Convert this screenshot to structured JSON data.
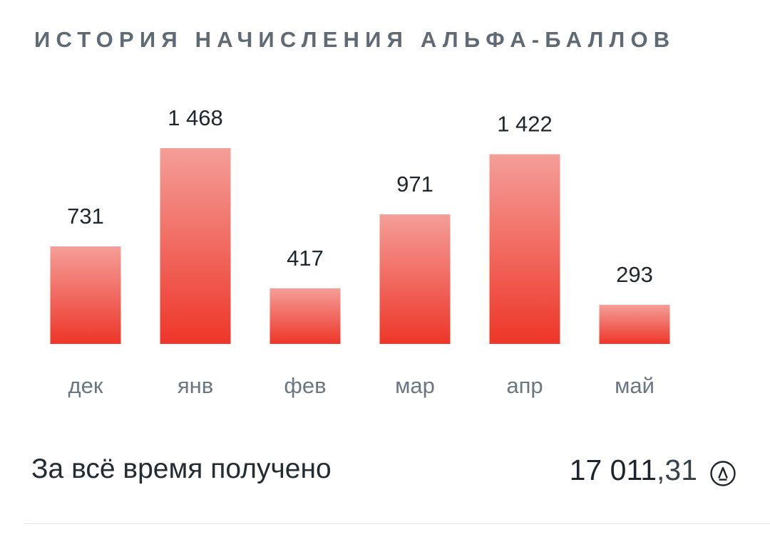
{
  "header": {
    "title": "ИСТОРИЯ НАЧИСЛЕНИЯ АЛЬФА-БАЛЛОВ"
  },
  "chart_data": {
    "type": "bar",
    "categories": [
      "дек",
      "янв",
      "фев",
      "мар",
      "апр",
      "май"
    ],
    "values": [
      731,
      1468,
      417,
      971,
      1422,
      293
    ],
    "value_labels": [
      "731",
      "1 468",
      "417",
      "971",
      "1 422",
      "293"
    ],
    "ylim": [
      0,
      1468
    ],
    "grid": false,
    "bar_color_top": "#f49e98",
    "bar_color_bottom": "#ee3629"
  },
  "summary": {
    "label": "За всё время получено",
    "value_int": "17 011",
    "value_frac": ",31",
    "currency_icon": "alfa-points-icon"
  }
}
